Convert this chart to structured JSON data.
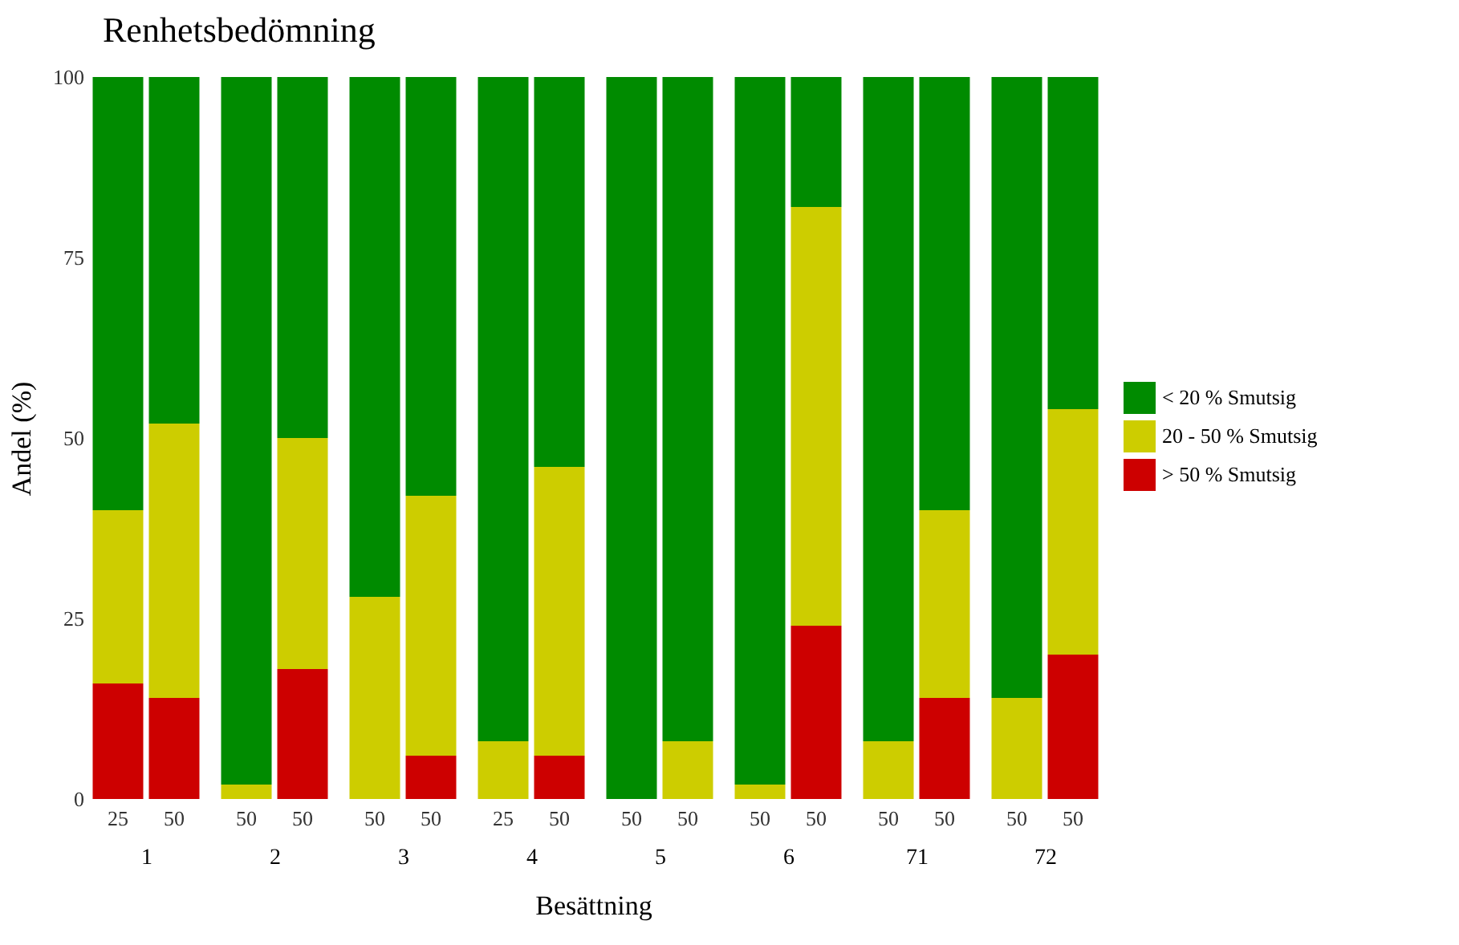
{
  "chart_data": [
    {
      "type": "bar",
      "stacked": true,
      "title": "Renhetsbedömning",
      "ylabel": "Andel (%)",
      "xlabel": "1",
      "annotations": [
        "Besättning"
      ],
      "categories": [
        "25",
        "50"
      ],
      "ylim": [
        0,
        100
      ],
      "yticks": [
        0,
        25,
        50,
        75,
        100
      ],
      "series": [
        {
          "color": "#cd0000",
          "values": [
            16,
            14
          ]
        },
        {
          "color": "#cdcd00",
          "values": [
            24,
            38
          ]
        },
        {
          "color": "#008b00",
          "values": [
            60,
            48
          ]
        }
      ]
    },
    {
      "type": "bar",
      "stacked": true,
      "xlabel": "2",
      "categories": [
        "50",
        "50"
      ],
      "ylim": [
        0,
        100
      ],
      "yticks": [
        0,
        25,
        50,
        75,
        100
      ],
      "tick_labels": "x",
      "series": [
        {
          "color": "#cd0000",
          "values": [
            0,
            18
          ]
        },
        {
          "color": "#cdcd00",
          "values": [
            2,
            32
          ]
        },
        {
          "color": "#008b00",
          "values": [
            98,
            50
          ]
        }
      ]
    },
    {
      "type": "bar",
      "stacked": true,
      "xlabel": "3",
      "categories": [
        "50",
        "50"
      ],
      "ylim": [
        0,
        100
      ],
      "yticks": [
        0,
        25,
        50,
        75,
        100
      ],
      "tick_labels": "x",
      "series": [
        {
          "color": "#cd0000",
          "values": [
            0,
            6
          ]
        },
        {
          "color": "#cdcd00",
          "values": [
            28,
            36
          ]
        },
        {
          "color": "#008b00",
          "values": [
            72,
            58
          ]
        }
      ]
    },
    {
      "type": "bar",
      "stacked": true,
      "xlabel": "4",
      "categories": [
        "25",
        "50"
      ],
      "ylim": [
        0,
        100
      ],
      "yticks": [
        0,
        25,
        50,
        75,
        100
      ],
      "tick_labels": "x",
      "series": [
        {
          "color": "#cd0000",
          "values": [
            0,
            6
          ]
        },
        {
          "color": "#cdcd00",
          "values": [
            8,
            40
          ]
        },
        {
          "color": "#008b00",
          "values": [
            92,
            54
          ]
        }
      ]
    },
    {
      "type": "bar",
      "stacked": true,
      "xlabel": "5",
      "categories": [
        "50",
        "50"
      ],
      "ylim": [
        0,
        100
      ],
      "yticks": [
        0,
        25,
        50,
        75,
        100
      ],
      "tick_labels": "x",
      "series": [
        {
          "color": "#cd0000",
          "values": [
            0,
            0
          ]
        },
        {
          "color": "#cdcd00",
          "values": [
            0,
            8
          ]
        },
        {
          "color": "#008b00",
          "values": [
            100,
            92
          ]
        }
      ]
    },
    {
      "type": "bar",
      "stacked": true,
      "xlabel": "6",
      "categories": [
        "50",
        "50"
      ],
      "ylim": [
        0,
        100
      ],
      "yticks": [
        0,
        25,
        50,
        75,
        100
      ],
      "tick_labels": "x",
      "series": [
        {
          "color": "#cd0000",
          "values": [
            0,
            24
          ]
        },
        {
          "color": "#cdcd00",
          "values": [
            2,
            58
          ]
        },
        {
          "color": "#008b00",
          "values": [
            98,
            18
          ]
        }
      ]
    },
    {
      "type": "bar",
      "stacked": true,
      "xlabel": "71",
      "categories": [
        "50",
        "50"
      ],
      "ylim": [
        0,
        100
      ],
      "yticks": [
        0,
        25,
        50,
        75,
        100
      ],
      "tick_labels": "x",
      "series": [
        {
          "color": "#cd0000",
          "values": [
            0,
            14
          ]
        },
        {
          "color": "#cdcd00",
          "values": [
            8,
            26
          ]
        },
        {
          "color": "#008b00",
          "values": [
            92,
            60
          ]
        }
      ]
    },
    {
      "type": "bar",
      "stacked": true,
      "xlabel": "72",
      "legend": "right",
      "categories": [
        "50",
        "50"
      ],
      "ylim": [
        0,
        100
      ],
      "yticks": [
        0,
        25,
        50,
        75,
        100
      ],
      "tick_labels": "x",
      "series": [
        {
          "name": "> 50 % Smutsig",
          "color": "#cd0000",
          "values": [
            0,
            20
          ]
        },
        {
          "name": "20 - 50 % Smutsig",
          "color": "#cdcd00",
          "values": [
            14,
            34
          ]
        },
        {
          "name": "< 20 % Smutsig",
          "color": "#008b00",
          "values": [
            86,
            46
          ]
        }
      ]
    }
  ]
}
